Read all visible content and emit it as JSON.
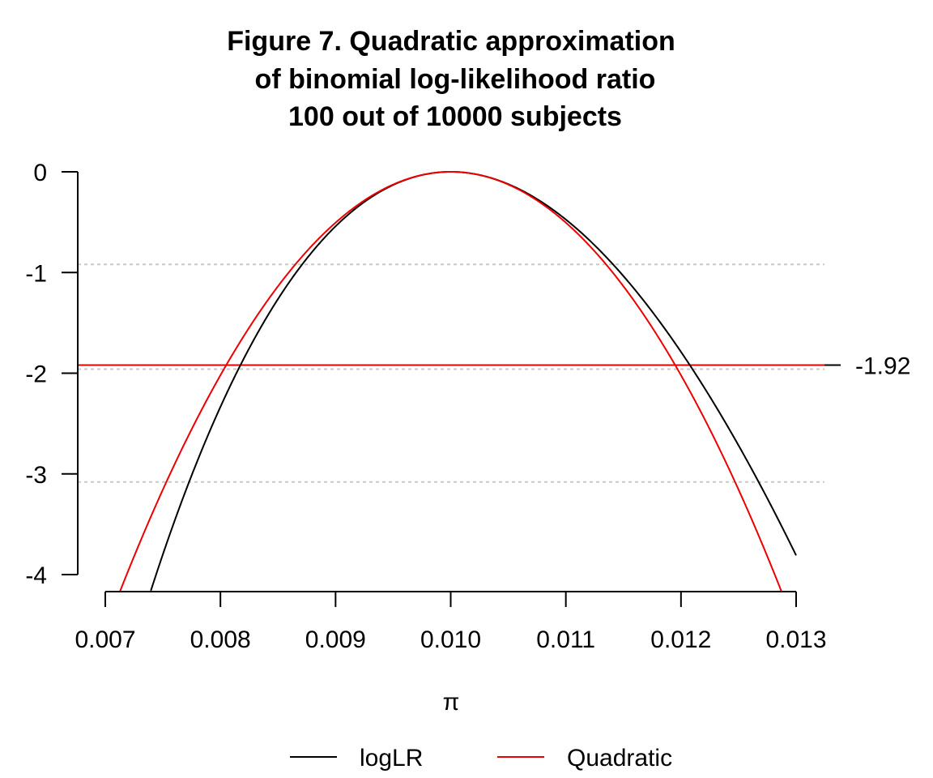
{
  "chart_data": {
    "type": "line",
    "title_lines": [
      "Figure 7. Quadratic approximation",
      "of binomial log-likelihood ratio",
      "100 out of 10000 subjects"
    ],
    "xlabel": "π",
    "ylabel": "",
    "xlim": [
      0.007,
      0.013
    ],
    "ylim": [
      -4,
      0
    ],
    "x_ticks": [
      0.007,
      0.008,
      0.009,
      0.01,
      0.011,
      0.012,
      0.013
    ],
    "x_tick_labels": [
      "0.007",
      "0.008",
      "0.009",
      "0.010",
      "0.011",
      "0.012",
      "0.013"
    ],
    "y_ticks": [
      0,
      -1,
      -2,
      -3,
      -4
    ],
    "y_tick_labels": [
      "0",
      "-1",
      "-2",
      "-3",
      "-4"
    ],
    "model": {
      "successes": 100,
      "n": 10000
    },
    "x_min_plotted": 0.00708,
    "series": [
      {
        "name": "logLR",
        "color": "#000000",
        "kind": "logLR",
        "x": [
          0.0074,
          0.008,
          0.0085,
          0.009,
          0.0095,
          0.01,
          0.0105,
          0.011,
          0.0115,
          0.012,
          0.0125,
          0.013
        ],
        "y": [
          -4.1,
          -2.2,
          -1.18,
          -0.53,
          -0.13,
          0.0,
          -0.12,
          -0.47,
          -1.03,
          -1.77,
          -2.68,
          -3.82
        ]
      },
      {
        "name": "Quadratic",
        "color": "#ee0000",
        "kind": "quadratic",
        "x": [
          0.0071,
          0.008,
          0.0085,
          0.009,
          0.0095,
          0.01,
          0.0105,
          0.011,
          0.0115,
          0.012,
          0.0129
        ],
        "y": [
          -4.2,
          -2.02,
          -1.14,
          -0.51,
          -0.13,
          0.0,
          -0.13,
          -0.51,
          -1.14,
          -2.02,
          -4.2
        ]
      }
    ],
    "hlines": [
      {
        "y": -1.92,
        "color": "#ee0000",
        "label": "-1.92"
      }
    ],
    "grid_y": [
      -0.92,
      -1.96,
      -3.08
    ],
    "grid": "dotted horizontal",
    "legend": {
      "position": "bottom",
      "entries": [
        "logLR",
        "Quadratic"
      ]
    }
  }
}
